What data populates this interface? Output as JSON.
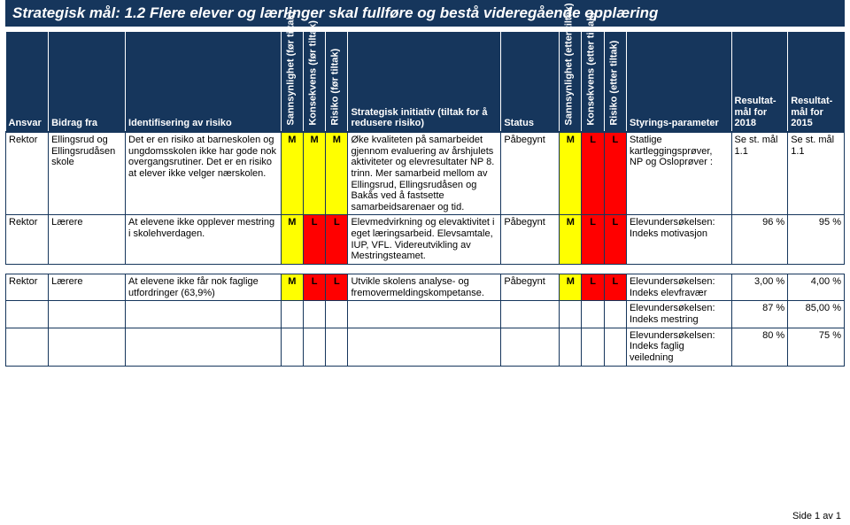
{
  "title": "Strategisk mål: 1.2 Flere elever og lærlinger skal fullføre og bestå videregående opplæring",
  "headers": {
    "ansvar": "Ansvar",
    "bidrag": "Bidrag fra",
    "ident": "Identifisering av risiko",
    "sann_for": "Sannsynlighet (før tiltak)",
    "kons_for": "Konsekvens (før tiltak)",
    "risk_for": "Risiko (før tiltak)",
    "init": "Strategisk initiativ (tiltak for å redusere risiko)",
    "status": "Status",
    "sann_ett": "Sannsynlighet (etter tiltak)",
    "kons_ett": "Konsekvens (etter tiltak)",
    "risk_ett": "Risiko (etter tiltak)",
    "param": "Styrings-parameter",
    "mal2018": "Resultat-mål for 2018",
    "mal2015": "Resultat-mål for 2015"
  },
  "rows": [
    {
      "ansvar": "Rektor",
      "bidrag": "Ellingsrud og Ellingsrudåsen skole",
      "ident": "Det er en risiko at barneskolen og ungdomsskolen ikke har gode nok overgangsrutiner. Det er en risiko at elever ikke velger nærskolen.",
      "sf": "M",
      "kf": "M",
      "rf": "M",
      "init": "Øke kvaliteten på samarbeidet gjennom evaluering av årshjulets aktiviteter og elevresultater NP 8. trinn. Mer samarbeid mellom av Ellingsrud, Ellingsrudåsen og Bakås ved å fastsette samarbeidsarenaer og tid.",
      "status": "Påbegynt",
      "se": "M",
      "ke": "L",
      "re": "L",
      "param": "Statlige kartleggingsprøver, NP og Osloprøver :",
      "m2018": "Se st. mål 1.1",
      "m2015": "Se st. mål 1.1"
    },
    {
      "ansvar": "Rektor",
      "bidrag": "Lærere",
      "ident": "At elevene ikke opplever mestring i skolehverdagen.",
      "sf": "M",
      "kf": "L",
      "rf": "L",
      "init": "Elevmedvirkning og elevaktivitet i eget læringsarbeid. Elevsamtale, IUP, VFL. Videreutvikling av Mestringsteamet.",
      "status": "Påbegynt",
      "se": "M",
      "ke": "L",
      "re": "L",
      "param": "Elevundersøkelsen: Indeks motivasjon",
      "m2018": "96 %",
      "m2015": "95 %"
    },
    {
      "ansvar": "Rektor",
      "bidrag": "Lærere",
      "ident": "At elevene ikke får nok faglige utfordringer (63,9%)",
      "sf": "M",
      "kf": "L",
      "rf": "L",
      "init": "Utvikle skolens analyse- og fremovermeldingskompetanse.",
      "status": "Påbegynt",
      "se": "M",
      "ke": "L",
      "re": "L",
      "param": "Elevundersøkelsen: Indeks elevfravær",
      "m2018": "3,00 %",
      "m2015": "4,00 %"
    }
  ],
  "subrows": [
    {
      "param": "Elevundersøkelsen: Indeks mestring",
      "m2018": "87 %",
      "m2015": "85,00 %"
    },
    {
      "param": "Elevundersøkelsen: Indeks faglig veiledning",
      "m2018": "80 %",
      "m2015": "75 %"
    }
  ],
  "footer": "Side 1 av 1",
  "colors": {
    "M": "#ffff00",
    "L": "#ff0000"
  }
}
